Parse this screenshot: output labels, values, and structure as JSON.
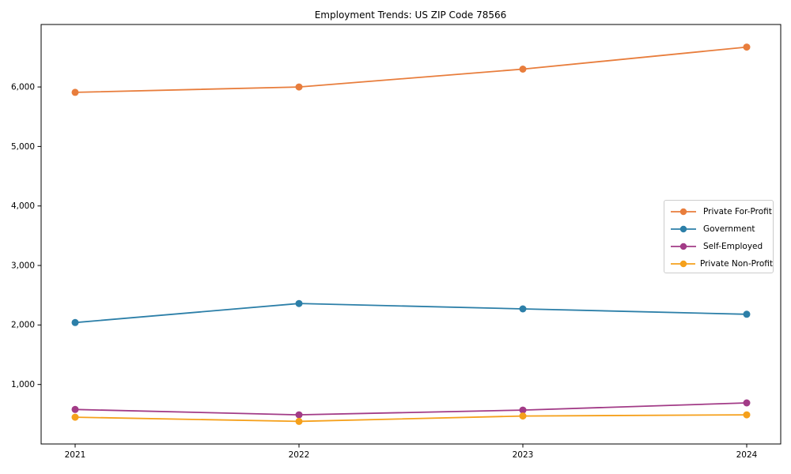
{
  "title": "Employment Trends: US ZIP Code 78566",
  "chart_data": {
    "type": "line",
    "title": "Employment Trends: US ZIP Code 78566",
    "categories": [
      "2021",
      "2022",
      "2023",
      "2024"
    ],
    "series": [
      {
        "name": "Private For-Profit",
        "color": "#e87d3c",
        "values": [
          5910,
          6000,
          6300,
          6670
        ]
      },
      {
        "name": "Government",
        "color": "#2c7fa8",
        "values": [
          2040,
          2360,
          2270,
          2180
        ]
      },
      {
        "name": "Self-Employed",
        "color": "#a23b87",
        "values": [
          580,
          490,
          570,
          690
        ]
      },
      {
        "name": "Private Non-Profit",
        "color": "#f5a01b",
        "values": [
          450,
          380,
          470,
          490
        ]
      }
    ],
    "xlabel": "",
    "ylabel": "",
    "ylim": [
      0,
      7050
    ],
    "yticks": [
      1000,
      2000,
      3000,
      4000,
      5000,
      6000
    ],
    "ytick_labels": [
      "1,000",
      "2,000",
      "3,000",
      "4,000",
      "5,000",
      "6,000"
    ],
    "grid": false,
    "marker": "o",
    "legend_position": "center right",
    "axis_color": "#000000",
    "background_color": "#ffffff"
  }
}
